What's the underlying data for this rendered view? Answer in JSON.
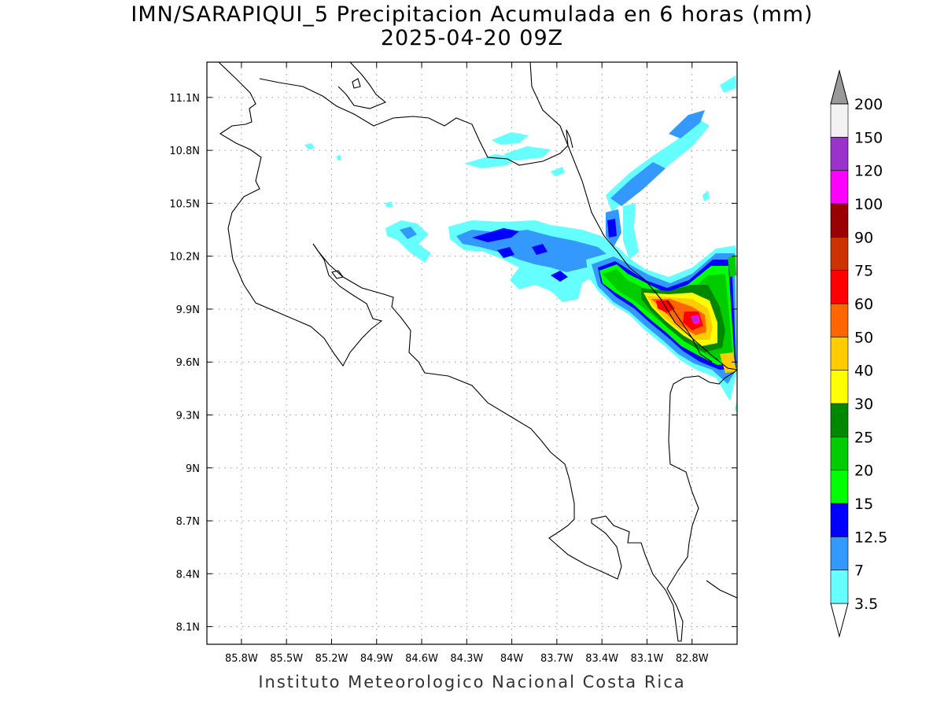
{
  "title": "IMN/SARAPIQUI_5 Precipitacion Acumulada en 6 horas (mm)",
  "subtitle": "2025-04-20 09Z",
  "credit": "Instituto Meteorologico Nacional Costa Rica",
  "map": {
    "lon_range": [
      -86.03,
      -82.5
    ],
    "lat_range": [
      8.0,
      11.3
    ],
    "lon_ticks": [
      {
        "value": -85.8,
        "label": "85.8W"
      },
      {
        "value": -85.5,
        "label": "85.5W"
      },
      {
        "value": -85.2,
        "label": "85.2W"
      },
      {
        "value": -84.9,
        "label": "84.9W"
      },
      {
        "value": -84.6,
        "label": "84.6W"
      },
      {
        "value": -84.3,
        "label": "84.3W"
      },
      {
        "value": -84.0,
        "label": "84W"
      },
      {
        "value": -83.7,
        "label": "83.7W"
      },
      {
        "value": -83.4,
        "label": "83.4W"
      },
      {
        "value": -83.1,
        "label": "83.1W"
      },
      {
        "value": -82.8,
        "label": "82.8W"
      }
    ],
    "lat_ticks": [
      {
        "value": 11.1,
        "label": "11.1N"
      },
      {
        "value": 10.8,
        "label": "10.8N"
      },
      {
        "value": 10.5,
        "label": "10.5N"
      },
      {
        "value": 10.2,
        "label": "10.2N"
      },
      {
        "value": 9.9,
        "label": "9.9N"
      },
      {
        "value": 9.6,
        "label": "9.6N"
      },
      {
        "value": 9.3,
        "label": "9.3N"
      },
      {
        "value": 9.0,
        "label": "9N"
      },
      {
        "value": 8.7,
        "label": "8.7N"
      },
      {
        "value": 8.4,
        "label": "8.4N"
      },
      {
        "value": 8.1,
        "label": "8.1N"
      }
    ]
  },
  "colorbar": {
    "levels": [
      {
        "label": "3.5",
        "color": "#66ffff"
      },
      {
        "label": "7",
        "color": "#3399ff"
      },
      {
        "label": "12.5",
        "color": "#0000ff"
      },
      {
        "label": "15",
        "color": "#00ff00"
      },
      {
        "label": "20",
        "color": "#00cc00"
      },
      {
        "label": "25",
        "color": "#008800"
      },
      {
        "label": "30",
        "color": "#ffff00"
      },
      {
        "label": "40",
        "color": "#ffcc00"
      },
      {
        "label": "50",
        "color": "#ff6600"
      },
      {
        "label": "60",
        "color": "#ff0000"
      },
      {
        "label": "75",
        "color": "#cc3300"
      },
      {
        "label": "90",
        "color": "#990000"
      },
      {
        "label": "100",
        "color": "#ff00ff"
      },
      {
        "label": "120",
        "color": "#9933cc"
      },
      {
        "label": "150",
        "color": "#f2f2f2"
      },
      {
        "label": "200",
        "color": "#999999"
      }
    ]
  }
}
